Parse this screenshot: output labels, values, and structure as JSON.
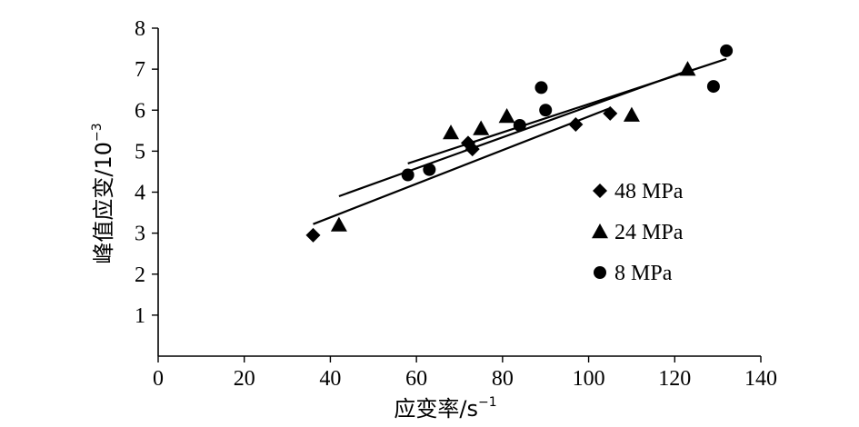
{
  "chart_data": {
    "type": "scatter",
    "xlabel": "应变率/s",
    "xlabel_sup": "−1",
    "ylabel": "峰值应变/10",
    "ylabel_sup": "−3",
    "xlim": [
      0,
      140
    ],
    "ylim": [
      0,
      8
    ],
    "x_ticks": [
      "0",
      "20",
      "40",
      "60",
      "80",
      "100",
      "120",
      "140"
    ],
    "y_ticks": [
      "1",
      "2",
      "3",
      "4",
      "5",
      "6",
      "7",
      "8"
    ],
    "grid": false,
    "legend_position": "right",
    "series": [
      {
        "name": "48 MPa",
        "marker": "diamond",
        "points": [
          [
            36,
            2.95
          ],
          [
            72,
            5.2
          ],
          [
            73,
            5.05
          ],
          [
            97,
            5.65
          ],
          [
            105,
            5.92
          ]
        ],
        "trend": [
          [
            36,
            3.22
          ],
          [
            105,
            6.05
          ]
        ]
      },
      {
        "name": "24 MPa",
        "marker": "triangle",
        "points": [
          [
            42,
            3.2
          ],
          [
            68,
            5.45
          ],
          [
            75,
            5.55
          ],
          [
            81,
            5.85
          ],
          [
            110,
            5.88
          ],
          [
            123,
            7.0
          ]
        ],
        "trend": [
          [
            42,
            3.9
          ],
          [
            124,
            7.0
          ]
        ]
      },
      {
        "name": "8 MPa",
        "marker": "circle",
        "points": [
          [
            58,
            4.42
          ],
          [
            63,
            4.55
          ],
          [
            84,
            5.63
          ],
          [
            89,
            6.55
          ],
          [
            90,
            6.0
          ],
          [
            129,
            6.58
          ],
          [
            132,
            7.45
          ]
        ],
        "trend": [
          [
            58,
            4.7
          ],
          [
            132,
            7.25
          ]
        ]
      }
    ]
  }
}
